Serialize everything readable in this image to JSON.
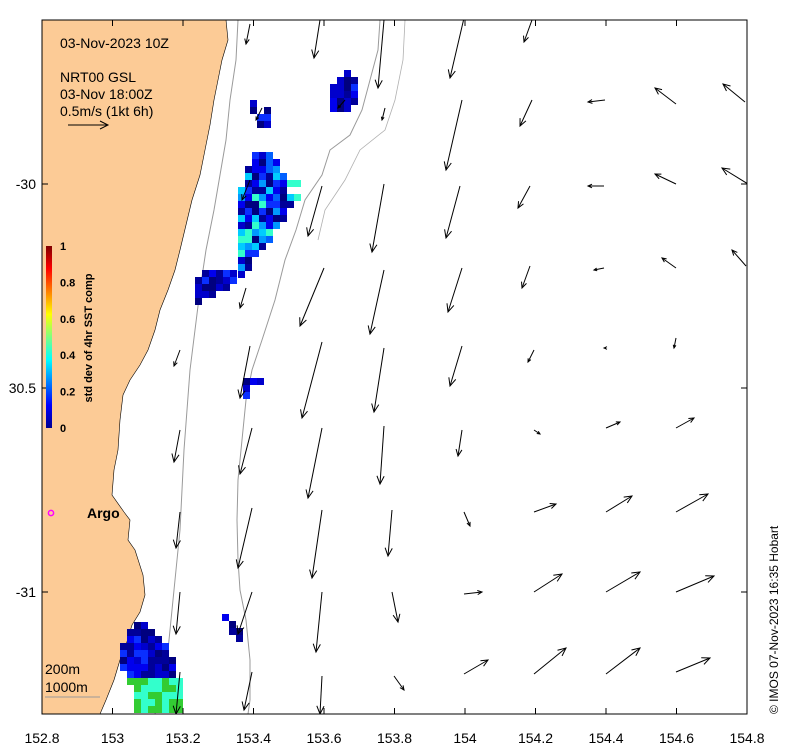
{
  "map": {
    "datetime": "03-Nov-2023 10Z",
    "product": "NRT00 GSL",
    "valid_time": "03-Nov 18:00Z",
    "scale_label": "0.5m/s (1kt 6h)",
    "argo_label": "Argo",
    "depth_200": "200m",
    "depth_1000": "1000m",
    "credit": "© IMOS 07-Nov-2023 16:35 Hobart",
    "x_ticks": [
      "152.8",
      "153",
      "153.2",
      "153.4",
      "153.6",
      "153.8",
      "154",
      "154.2",
      "154.4",
      "154.6",
      "154.8"
    ],
    "y_ticks": [
      "-30",
      "30.5",
      "-31"
    ],
    "colorbar": {
      "title": "std dev of 4hr SST comp",
      "ticks": [
        "1",
        "0.8",
        "0.6",
        "0.4",
        "0.2",
        "0"
      ]
    },
    "colors": {
      "land": "#fccb96",
      "ocean": "#ffffff",
      "argo_marker": "#ff00ff"
    },
    "lon_range": [
      152.8,
      154.8
    ],
    "lat_range": [
      -31.3,
      -29.6
    ]
  }
}
